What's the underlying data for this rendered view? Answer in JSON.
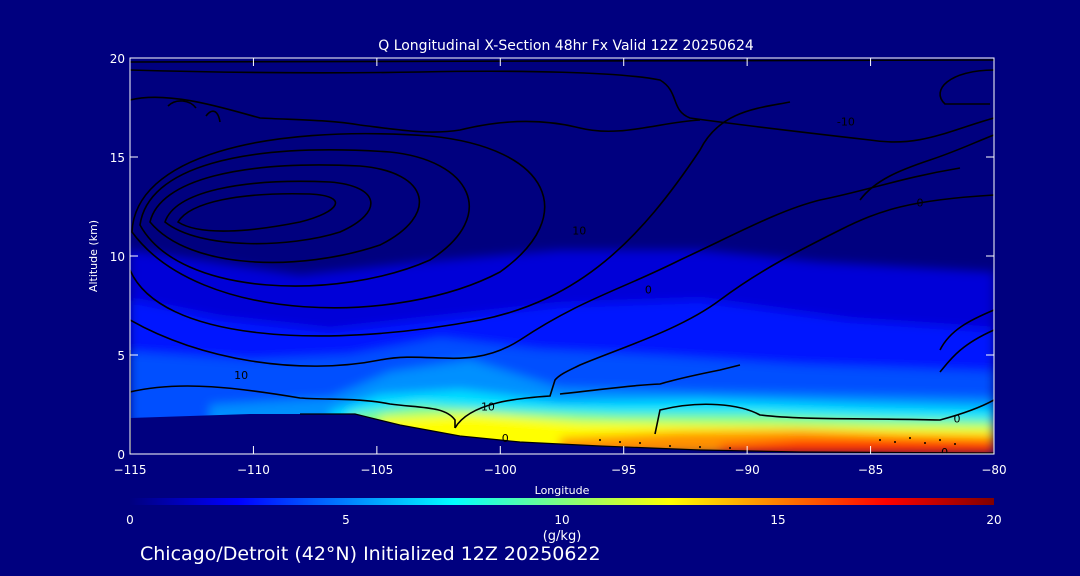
{
  "chart_data": {
    "type": "heatmap",
    "title": "Q Longitudinal X-Section 48hr  Fx Valid 12Z 20250624",
    "xlabel": "Longitude",
    "ylabel": "Altitude (km)",
    "xlim": [
      -115,
      -80
    ],
    "ylim": [
      0,
      20
    ],
    "x_ticks": [
      -115,
      -110,
      -105,
      -100,
      -95,
      -90,
      -85,
      -80
    ],
    "x_tick_labels": [
      "−115",
      "−110",
      "−105",
      "−100",
      "−95",
      "−90",
      "−85",
      "−80"
    ],
    "y_ticks": [
      0,
      5,
      10,
      15,
      20
    ],
    "y_tick_labels": [
      "0",
      "5",
      "10",
      "15",
      "20"
    ],
    "colorbar": {
      "label": "(g/kg)",
      "min": 0,
      "max": 20,
      "ticks": [
        0,
        5,
        10,
        15,
        20
      ],
      "tick_labels": [
        "0",
        "5",
        "10",
        "15",
        "20"
      ],
      "colors": [
        "#00007f",
        "#0000ff",
        "#0080ff",
        "#00ffff",
        "#80ff80",
        "#ffff00",
        "#ff8000",
        "#ff0000",
        "#800000"
      ]
    },
    "contour_labels": [
      {
        "text": "10",
        "lon": -100.5,
        "alt": 2.4
      },
      {
        "text": "0",
        "lon": -99.8,
        "alt": 0.8
      },
      {
        "text": "10",
        "lon": -96.8,
        "alt": 11.3
      },
      {
        "text": "0",
        "lon": -94.0,
        "alt": 8.3
      },
      {
        "text": "-10",
        "lon": -86.0,
        "alt": 16.8
      },
      {
        "text": "0",
        "lon": -83.0,
        "alt": 12.7
      },
      {
        "text": "10",
        "lon": -110.5,
        "alt": 4.0
      },
      {
        "text": "0",
        "lon": -81.5,
        "alt": 1.8
      },
      {
        "text": "0",
        "lon": -82.0,
        "alt": 0.1
      }
    ]
  },
  "footer": {
    "caption": "Chicago/Detroit (42°N) Initialized 12Z 20250622"
  }
}
